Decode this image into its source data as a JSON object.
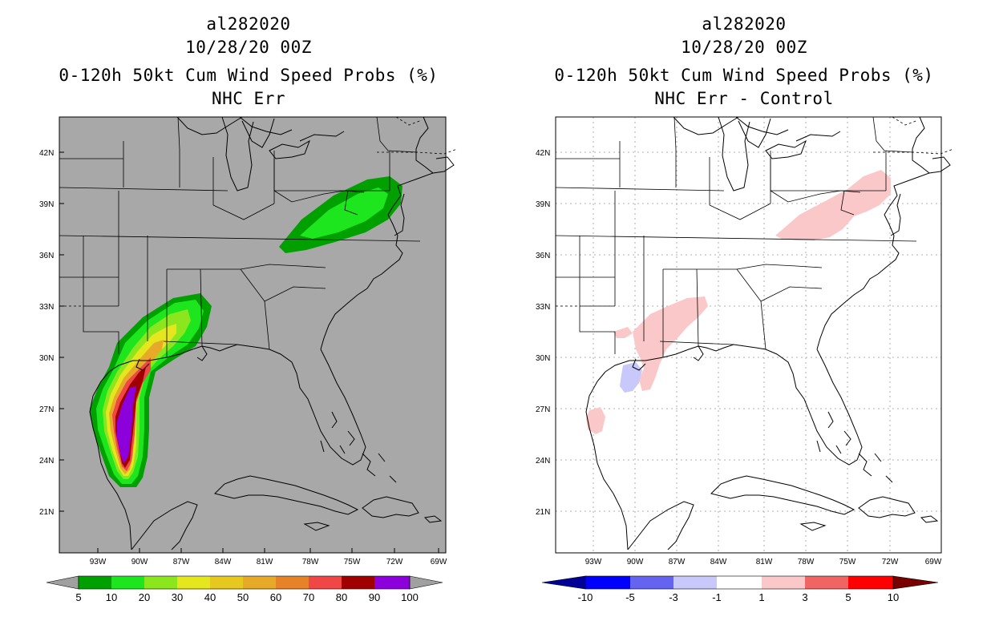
{
  "left_panel": {
    "storm_id": "al282020",
    "datetime": "10/28/20 00Z",
    "product": "0-120h 50kt Cum Wind Speed Probs (%)",
    "subtitle": "NHC Err",
    "lat_labels": [
      "42N",
      "39N",
      "36N",
      "33N",
      "30N",
      "27N",
      "24N",
      "21N"
    ],
    "lon_labels": [
      "93W",
      "90W",
      "87W",
      "84W",
      "81W",
      "78W",
      "75W",
      "72W",
      "69W"
    ],
    "colorbar": {
      "labels": [
        "5",
        "10",
        "20",
        "30",
        "40",
        "50",
        "60",
        "70",
        "80",
        "90",
        "100"
      ],
      "colors": [
        "#00a000",
        "#1ee61e",
        "#8ce61e",
        "#e6e61e",
        "#e6c81e",
        "#e6aa28",
        "#e68228",
        "#f04646",
        "#a00000",
        "#8c00dc"
      ],
      "ends": [
        "#a0a0a0",
        "#a0a0a0"
      ]
    }
  },
  "right_panel": {
    "storm_id": "al282020",
    "datetime": "10/28/20 00Z",
    "product": "0-120h 50kt Cum Wind Speed Probs (%)",
    "subtitle": "NHC Err - Control",
    "lat_labels": [
      "42N",
      "39N",
      "36N",
      "33N",
      "30N",
      "27N",
      "24N",
      "21N"
    ],
    "lon_labels": [
      "93W",
      "90W",
      "87W",
      "84W",
      "81W",
      "78W",
      "75W",
      "72W",
      "69W"
    ],
    "colorbar": {
      "labels": [
        "-10",
        "-5",
        "-3",
        "-1",
        "1",
        "3",
        "5",
        "10"
      ],
      "colors": [
        "#0000ff",
        "#6464f0",
        "#c8c8fa",
        "#ffffff",
        "#fac8c8",
        "#f06464",
        "#ff0000"
      ],
      "ends": [
        "#000096",
        "#780000"
      ]
    }
  }
}
